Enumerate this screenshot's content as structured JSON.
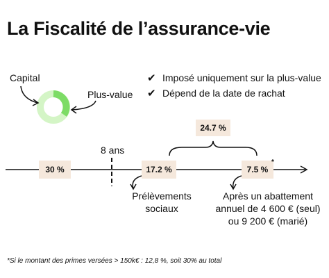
{
  "title": "La Fiscalité de l’assurance-vie",
  "donut": {
    "capital_label": "Capital",
    "plus_value_label": "Plus-value",
    "capital_color": "#d4f5c6",
    "plus_value_color": "#7ddc66"
  },
  "checks": [
    {
      "icon": "check-icon",
      "text": "Imposé uniquement sur la plus-value"
    },
    {
      "icon": "check-icon",
      "text": "Dépend de la date de rachat"
    }
  ],
  "timeline": {
    "marker_label": "8 ans",
    "before_rate": "30 %",
    "social_rate": "17.2 %",
    "after_rate": "7.5 %",
    "after_asterisk": "*",
    "total_rate": "24.7 %",
    "social_caption_line1": "Prélèvements",
    "social_caption_line2": "sociaux",
    "after_caption_line1": "Après un abattement",
    "after_caption_line2": "annuel de 4 600 € (seul)",
    "after_caption_line3": "ou 9 200 € (marié)",
    "box_color": "#f5e8dc"
  },
  "footnote": "*Si le montant des primes versées > 150k€ : 12,8 %, soit 30% au total"
}
